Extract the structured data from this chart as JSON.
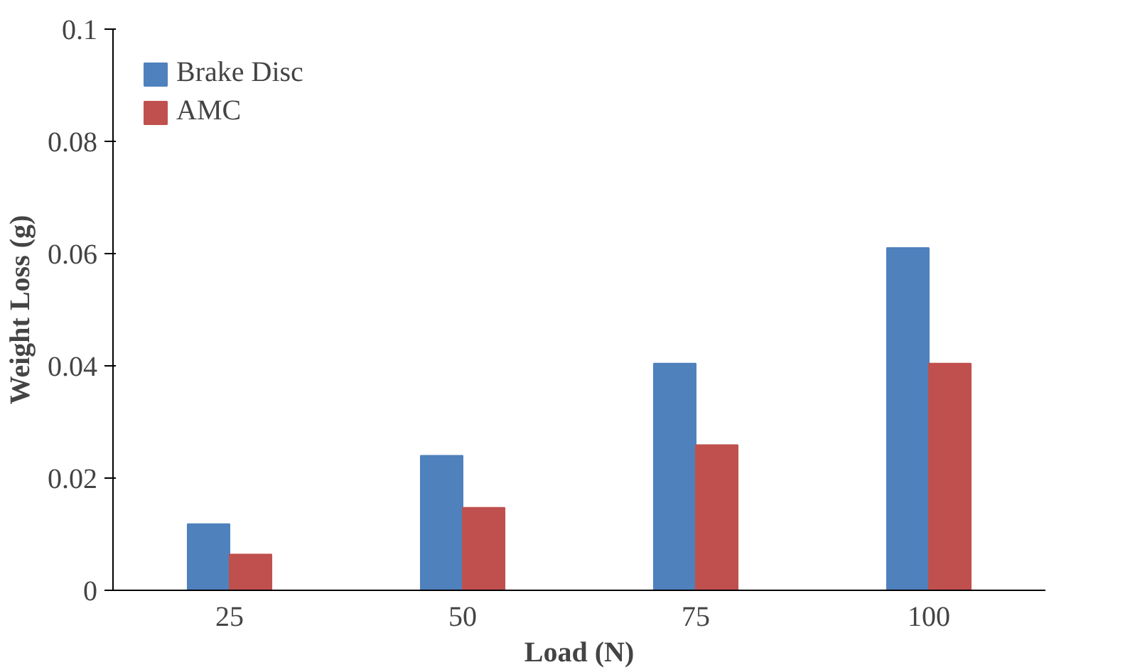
{
  "chart_data": {
    "type": "bar",
    "xlabel": "Load (N)",
    "ylabel": "Weight Loss (g)",
    "categories": [
      "25",
      "50",
      "75",
      "100"
    ],
    "series": [
      {
        "name": "Brake Disc",
        "color": "#4f81bd",
        "values": [
          0.0118,
          0.024,
          0.0404,
          0.061
        ]
      },
      {
        "name": "AMC",
        "color": "#c0504d",
        "values": [
          0.0064,
          0.0147,
          0.0259,
          0.0404
        ]
      }
    ],
    "ylim": [
      0,
      0.1
    ],
    "yticks": [
      0,
      0.02,
      0.04,
      0.06,
      0.08,
      0.1
    ],
    "grid": false,
    "legend": "top left"
  }
}
